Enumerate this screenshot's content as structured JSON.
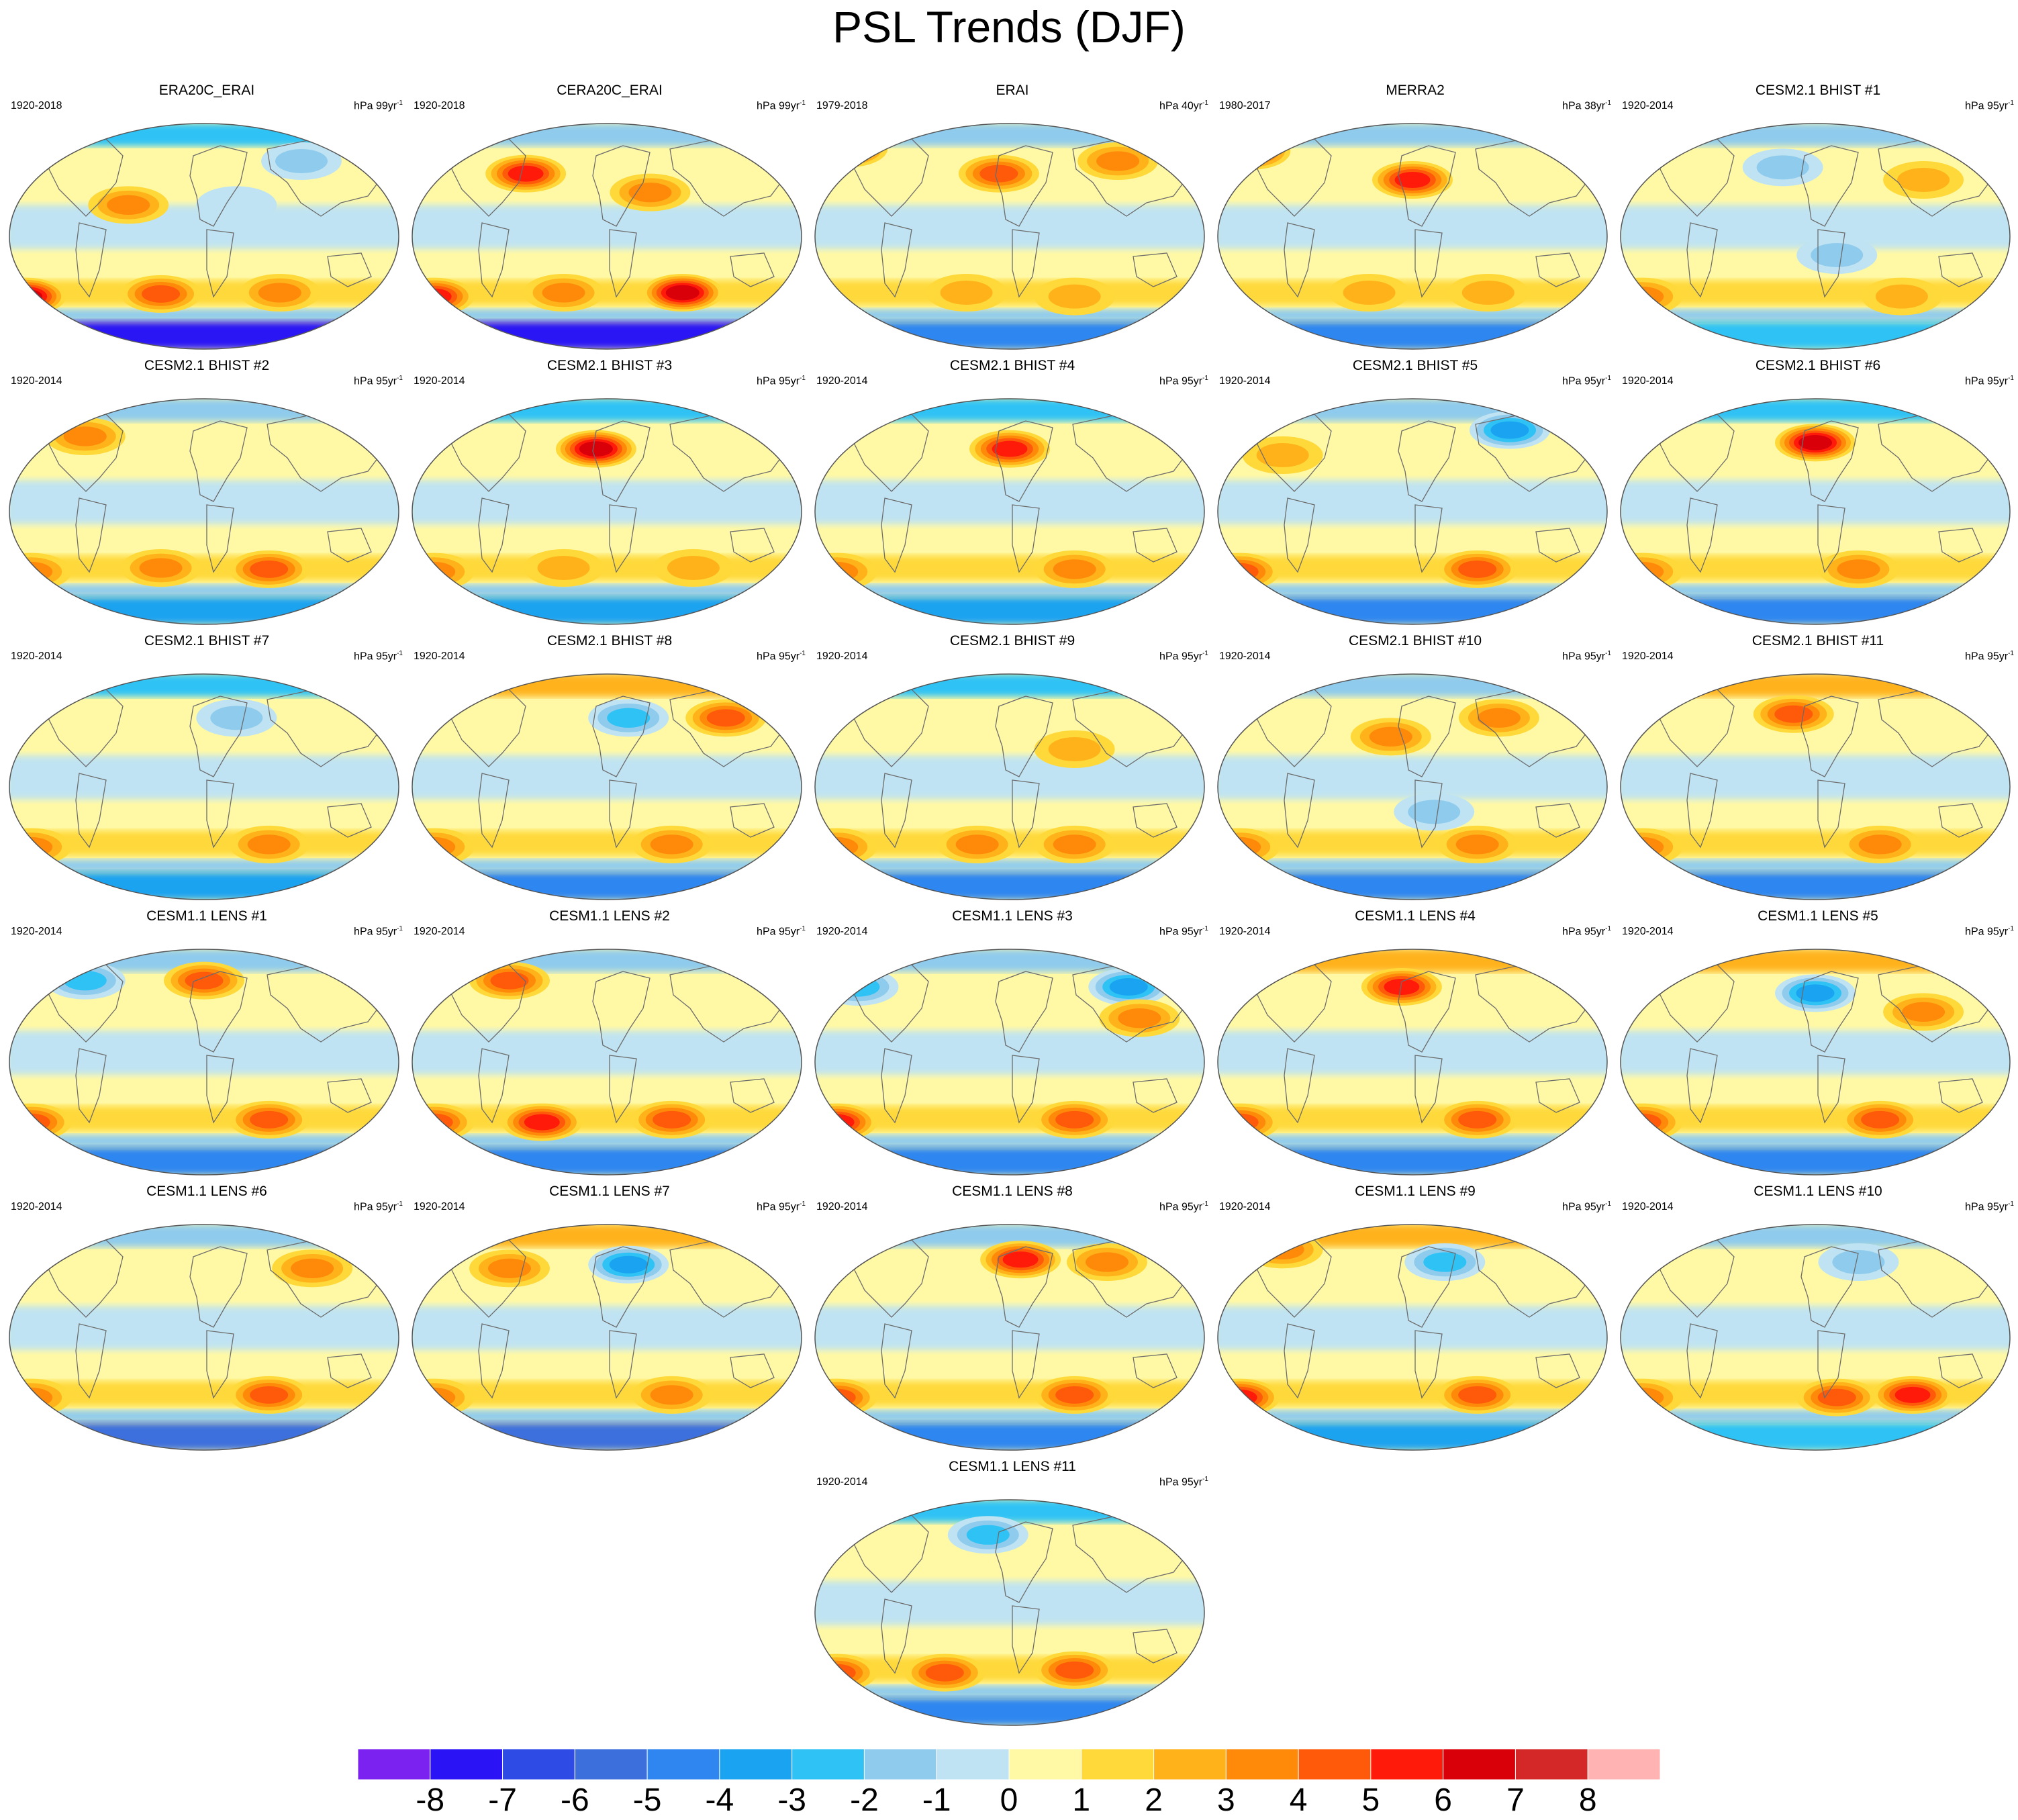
{
  "title": "PSL Trends (DJF)",
  "units_prefix": "hPa",
  "units_suffix": "yr",
  "units_exponent": "-1",
  "panels": [
    {
      "name": "ERA20C_ERAI",
      "period": "1920-2018",
      "scale": "99",
      "anomalies": [
        {
          "lon": -165,
          "lat": -48,
          "value": 6
        },
        {
          "lon": -40,
          "lat": -46,
          "value": 4
        },
        {
          "lon": 70,
          "lat": -45,
          "value": 3
        },
        {
          "lon": -70,
          "lat": 25,
          "value": 3
        },
        {
          "lon": 90,
          "lat": 60,
          "value": -2
        },
        {
          "lon": 30,
          "lat": 25,
          "value": -1
        }
      ],
      "south_polar": -8,
      "north_polar": -3
    },
    {
      "name": "CERA20C_ERAI",
      "period": "1920-2018",
      "scale": "99",
      "anomalies": [
        {
          "lon": -160,
          "lat": -48,
          "value": 5
        },
        {
          "lon": 70,
          "lat": -45,
          "value": 6
        },
        {
          "lon": -75,
          "lat": 50,
          "value": 5
        },
        {
          "lon": 40,
          "lat": 35,
          "value": 3
        },
        {
          "lon": -40,
          "lat": -45,
          "value": 3
        }
      ],
      "south_polar": -8,
      "north_polar": -2
    },
    {
      "name": "ERAI",
      "period": "1979-2018",
      "scale": "40",
      "anomalies": [
        {
          "lon": -150,
          "lat": 70,
          "value": 5
        },
        {
          "lon": -10,
          "lat": 50,
          "value": 4
        },
        {
          "lon": 100,
          "lat": 60,
          "value": 3
        },
        {
          "lon": -40,
          "lat": -45,
          "value": 2
        },
        {
          "lon": 60,
          "lat": -48,
          "value": 2
        }
      ],
      "south_polar": -5,
      "north_polar": -2
    },
    {
      "name": "MERRA2",
      "period": "1980-2017",
      "scale": "38",
      "anomalies": [
        {
          "lon": -150,
          "lat": 68,
          "value": 5
        },
        {
          "lon": 0,
          "lat": 45,
          "value": 5
        },
        {
          "lon": 70,
          "lat": -45,
          "value": 2
        },
        {
          "lon": -40,
          "lat": -45,
          "value": 2
        }
      ],
      "south_polar": -5,
      "north_polar": -2
    },
    {
      "name": "CESM2.1 BHIST #1",
      "period": "1920-2014",
      "scale": "95",
      "anomalies": [
        {
          "lon": -160,
          "lat": -48,
          "value": 3
        },
        {
          "lon": 20,
          "lat": -15,
          "value": -2
        },
        {
          "lon": -30,
          "lat": 55,
          "value": -2
        },
        {
          "lon": 80,
          "lat": -48,
          "value": 2
        },
        {
          "lon": 100,
          "lat": 45,
          "value": 2
        }
      ],
      "south_polar": -3,
      "north_polar": -2
    },
    {
      "name": "CESM2.1 BHIST #2",
      "period": "1920-2014",
      "scale": "95",
      "anomalies": [
        {
          "lon": -110,
          "lat": 60,
          "value": 3
        },
        {
          "lon": 60,
          "lat": -46,
          "value": 4
        },
        {
          "lon": -160,
          "lat": -48,
          "value": 3
        },
        {
          "lon": -40,
          "lat": -45,
          "value": 3
        }
      ],
      "south_polar": -4,
      "north_polar": -2
    },
    {
      "name": "CESM2.1 BHIST #3",
      "period": "1920-2014",
      "scale": "95",
      "anomalies": [
        {
          "lon": -10,
          "lat": 50,
          "value": 6
        },
        {
          "lon": -160,
          "lat": -48,
          "value": 3
        },
        {
          "lon": -40,
          "lat": -45,
          "value": 2
        },
        {
          "lon": 80,
          "lat": -45,
          "value": 2
        }
      ],
      "south_polar": -4,
      "north_polar": -3
    },
    {
      "name": "CESM2.1 BHIST #4",
      "period": "1920-2014",
      "scale": "95",
      "anomalies": [
        {
          "lon": 0,
          "lat": 50,
          "value": 5
        },
        {
          "lon": -160,
          "lat": -48,
          "value": 3
        },
        {
          "lon": 60,
          "lat": -46,
          "value": 3
        }
      ],
      "south_polar": -4,
      "north_polar": -3
    },
    {
      "name": "CESM2.1 BHIST #5",
      "period": "1920-2014",
      "scale": "95",
      "anomalies": [
        {
          "lon": 90,
          "lat": 65,
          "value": -4
        },
        {
          "lon": -160,
          "lat": -48,
          "value": 4
        },
        {
          "lon": 60,
          "lat": -46,
          "value": 4
        },
        {
          "lon": -120,
          "lat": 45,
          "value": 2
        }
      ],
      "south_polar": -5,
      "north_polar": -2
    },
    {
      "name": "CESM2.1 BHIST #6",
      "period": "1920-2014",
      "scale": "95",
      "anomalies": [
        {
          "lon": 0,
          "lat": 55,
          "value": 6
        },
        {
          "lon": -160,
          "lat": -48,
          "value": 3
        },
        {
          "lon": 40,
          "lat": -46,
          "value": 3
        }
      ],
      "south_polar": -5,
      "north_polar": -3
    },
    {
      "name": "CESM2.1 BHIST #7",
      "period": "1920-2014",
      "scale": "95",
      "anomalies": [
        {
          "lon": 30,
          "lat": 55,
          "value": -2
        },
        {
          "lon": -160,
          "lat": -48,
          "value": 3
        },
        {
          "lon": 60,
          "lat": -46,
          "value": 3
        }
      ],
      "south_polar": -4,
      "north_polar": -3
    },
    {
      "name": "CESM2.1 BHIST #8",
      "period": "1920-2014",
      "scale": "95",
      "anomalies": [
        {
          "lon": 20,
          "lat": 55,
          "value": -3
        },
        {
          "lon": 110,
          "lat": 55,
          "value": 4
        },
        {
          "lon": -160,
          "lat": -48,
          "value": 3
        },
        {
          "lon": 60,
          "lat": -46,
          "value": 3
        }
      ],
      "south_polar": -5,
      "north_polar": 2
    },
    {
      "name": "CESM2.1 BHIST #9",
      "period": "1920-2014",
      "scale": "95",
      "anomalies": [
        {
          "lon": -160,
          "lat": -48,
          "value": 3
        },
        {
          "lon": 60,
          "lat": -46,
          "value": 3
        },
        {
          "lon": -30,
          "lat": -46,
          "value": 3
        },
        {
          "lon": 60,
          "lat": 30,
          "value": 2
        }
      ],
      "south_polar": -5,
      "north_polar": -3
    },
    {
      "name": "CESM2.1 BHIST #10",
      "period": "1920-2014",
      "scale": "95",
      "anomalies": [
        {
          "lon": -20,
          "lat": 40,
          "value": 3
        },
        {
          "lon": 80,
          "lat": 55,
          "value": 3
        },
        {
          "lon": 20,
          "lat": -20,
          "value": -2
        },
        {
          "lon": -160,
          "lat": -48,
          "value": 3
        },
        {
          "lon": 60,
          "lat": -46,
          "value": 3
        }
      ],
      "south_polar": -5,
      "north_polar": -2
    },
    {
      "name": "CESM2.1 BHIST #11",
      "period": "1920-2014",
      "scale": "95",
      "anomalies": [
        {
          "lon": -20,
          "lat": 58,
          "value": 4
        },
        {
          "lon": -160,
          "lat": -48,
          "value": 3
        },
        {
          "lon": 60,
          "lat": -46,
          "value": 3
        }
      ],
      "south_polar": -5,
      "north_polar": 2
    },
    {
      "name": "CESM1.1 LENS #1",
      "period": "1920-2014",
      "scale": "95",
      "anomalies": [
        {
          "lon": 0,
          "lat": 65,
          "value": 4
        },
        {
          "lon": -110,
          "lat": 65,
          "value": -3
        },
        {
          "lon": -160,
          "lat": -48,
          "value": 4
        },
        {
          "lon": 60,
          "lat": -46,
          "value": 4
        }
      ],
      "south_polar": -5,
      "north_polar": -2
    },
    {
      "name": "CESM1.1 LENS #2",
      "period": "1920-2014",
      "scale": "95",
      "anomalies": [
        {
          "lon": -90,
          "lat": 65,
          "value": 4
        },
        {
          "lon": -60,
          "lat": -48,
          "value": 5
        },
        {
          "lon": -160,
          "lat": -48,
          "value": 4
        },
        {
          "lon": 60,
          "lat": -46,
          "value": 4
        }
      ],
      "south_polar": -5,
      "north_polar": -2
    },
    {
      "name": "CESM1.1 LENS #3",
      "period": "1920-2014",
      "scale": "95",
      "anomalies": [
        {
          "lon": 110,
          "lat": 60,
          "value": -4
        },
        {
          "lon": -140,
          "lat": 60,
          "value": -3
        },
        {
          "lon": -160,
          "lat": -48,
          "value": 5
        },
        {
          "lon": 60,
          "lat": -46,
          "value": 4
        },
        {
          "lon": 120,
          "lat": 35,
          "value": 3
        }
      ],
      "south_polar": -5,
      "north_polar": -2
    },
    {
      "name": "CESM1.1 LENS #4",
      "period": "1920-2014",
      "scale": "95",
      "anomalies": [
        {
          "lon": -10,
          "lat": 60,
          "value": 5
        },
        {
          "lon": -160,
          "lat": -48,
          "value": 4
        },
        {
          "lon": 60,
          "lat": -46,
          "value": 4
        }
      ],
      "south_polar": -5,
      "north_polar": 2
    },
    {
      "name": "CESM1.1 LENS #5",
      "period": "1920-2014",
      "scale": "95",
      "anomalies": [
        {
          "lon": 0,
          "lat": 55,
          "value": -4
        },
        {
          "lon": 100,
          "lat": 40,
          "value": 3
        },
        {
          "lon": -160,
          "lat": -48,
          "value": 4
        },
        {
          "lon": 60,
          "lat": -46,
          "value": 4
        }
      ],
      "south_polar": -5,
      "north_polar": 2
    },
    {
      "name": "CESM1.1 LENS #6",
      "period": "1920-2014",
      "scale": "95",
      "anomalies": [
        {
          "lon": 100,
          "lat": 55,
          "value": 3
        },
        {
          "lon": -160,
          "lat": -48,
          "value": 3
        },
        {
          "lon": 60,
          "lat": -46,
          "value": 4
        }
      ],
      "south_polar": -6,
      "north_polar": -2
    },
    {
      "name": "CESM1.1 LENS #7",
      "period": "1920-2014",
      "scale": "95",
      "anomalies": [
        {
          "lon": 20,
          "lat": 58,
          "value": -4
        },
        {
          "lon": -90,
          "lat": 55,
          "value": 3
        },
        {
          "lon": -160,
          "lat": -48,
          "value": 3
        },
        {
          "lon": 60,
          "lat": -46,
          "value": 3
        }
      ],
      "south_polar": -6,
      "north_polar": 2
    },
    {
      "name": "CESM1.1 LENS #8",
      "period": "1920-2014",
      "scale": "95",
      "anomalies": [
        {
          "lon": 10,
          "lat": 62,
          "value": 5
        },
        {
          "lon": 90,
          "lat": 60,
          "value": 3
        },
        {
          "lon": -160,
          "lat": -48,
          "value": 4
        },
        {
          "lon": 60,
          "lat": -46,
          "value": 4
        }
      ],
      "south_polar": -5,
      "north_polar": -2
    },
    {
      "name": "CESM1.1 LENS #9",
      "period": "1920-2014",
      "scale": "95",
      "anomalies": [
        {
          "lon": -120,
          "lat": 70,
          "value": 3
        },
        {
          "lon": 30,
          "lat": 60,
          "value": -3
        },
        {
          "lon": -160,
          "lat": -48,
          "value": 5
        },
        {
          "lon": 60,
          "lat": -46,
          "value": 4
        }
      ],
      "south_polar": -4,
      "north_polar": 2
    },
    {
      "name": "CESM1.1 LENS #10",
      "period": "1920-2014",
      "scale": "95",
      "anomalies": [
        {
          "lon": 20,
          "lat": -48,
          "value": 4
        },
        {
          "lon": 90,
          "lat": -46,
          "value": 5
        },
        {
          "lon": -160,
          "lat": -48,
          "value": 3
        },
        {
          "lon": 40,
          "lat": 60,
          "value": -2
        }
      ],
      "south_polar": -3,
      "north_polar": -2
    },
    {
      "name": "CESM1.1 LENS #11",
      "period": "1920-2014",
      "scale": "95",
      "anomalies": [
        {
          "lon": -160,
          "lat": -48,
          "value": 4
        },
        {
          "lon": -60,
          "lat": -48,
          "value": 4
        },
        {
          "lon": 60,
          "lat": -46,
          "value": 4
        },
        {
          "lon": -20,
          "lat": 62,
          "value": -3
        }
      ],
      "south_polar": -5,
      "north_polar": -3
    }
  ],
  "colorbar": {
    "labels": [
      "-8",
      "-7",
      "-6",
      "-5",
      "-4",
      "-3",
      "-2",
      "-1",
      "0",
      "1",
      "2",
      "3",
      "4",
      "5",
      "6",
      "7",
      "8"
    ],
    "colors": [
      "#7b22f0",
      "#2a13f5",
      "#2f4be6",
      "#3c6fdc",
      "#2f86f0",
      "#1aa3f0",
      "#2fc2f5",
      "#8fcbed",
      "#bfe3f2",
      "#fff9a6",
      "#ffd93a",
      "#ffb21a",
      "#ff8a0a",
      "#ff5a0a",
      "#ff1a0a",
      "#d9000a",
      "#d42828",
      "#ffb3b3"
    ]
  }
}
